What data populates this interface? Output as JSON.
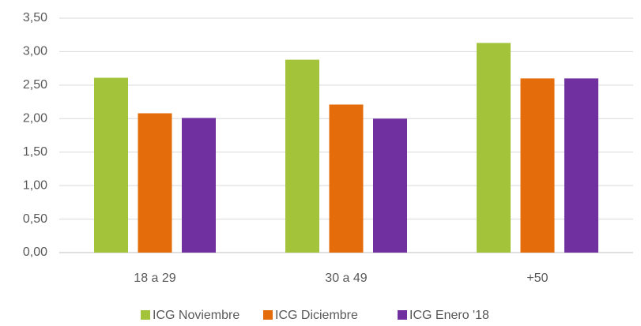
{
  "chart_data": {
    "type": "bar",
    "categories": [
      "18 a 29",
      "30 a 49",
      "+50"
    ],
    "series": [
      {
        "name": "ICG Noviembre",
        "color": "#a3c43a",
        "values": [
          2.61,
          2.88,
          3.13
        ]
      },
      {
        "name": "ICG Diciembre",
        "color": "#e46c0a",
        "values": [
          2.08,
          2.21,
          2.6
        ]
      },
      {
        "name": "ICG Enero '18",
        "color": "#7030a0",
        "values": [
          2.01,
          2.0,
          2.6
        ]
      }
    ],
    "ylim": [
      0,
      3.5
    ],
    "yticks": [
      {
        "value": 0,
        "label": "0,00"
      },
      {
        "value": 0.5,
        "label": "0,50"
      },
      {
        "value": 1,
        "label": "1,00"
      },
      {
        "value": 1.5,
        "label": "1,50"
      },
      {
        "value": 2,
        "label": "2,00"
      },
      {
        "value": 2.5,
        "label": "2,50"
      },
      {
        "value": 3,
        "label": "3,00"
      },
      {
        "value": 3.5,
        "label": "3,50"
      }
    ],
    "grid": true,
    "legend": "bottom"
  }
}
